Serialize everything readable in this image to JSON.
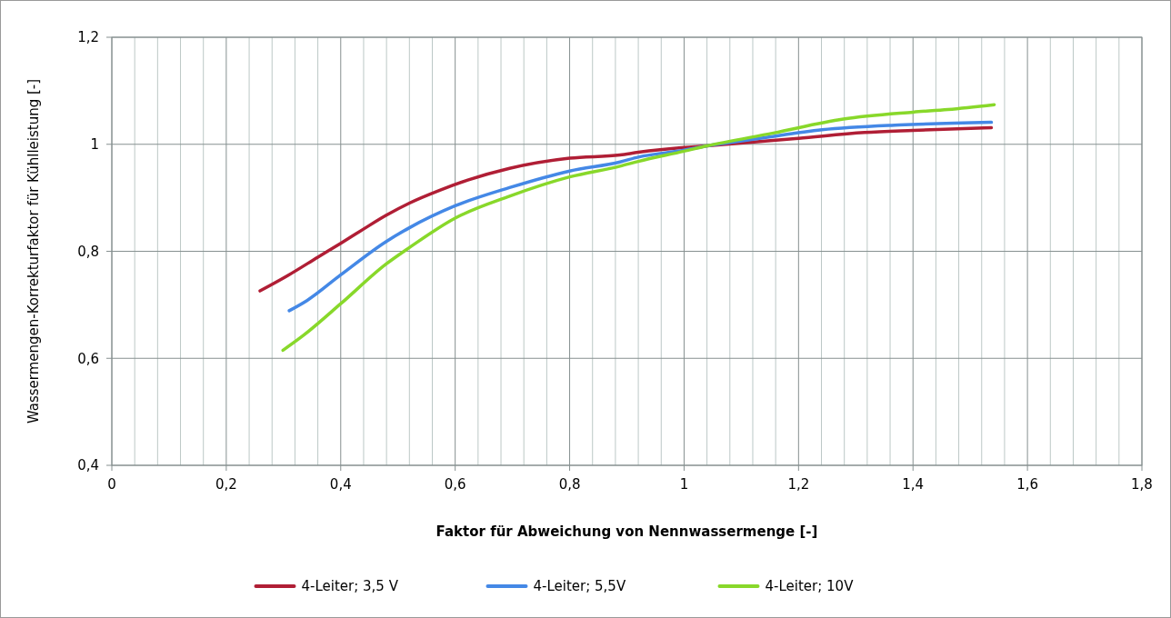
{
  "chart_data": {
    "type": "line",
    "xlabel": "Faktor für Abweichung von Nennwassermenge  [-]",
    "ylabel": "Wassermengen-Korrekturfaktor für Kühlleistung  [-]",
    "xlim": [
      0,
      1.8
    ],
    "ylim": [
      0.4,
      1.2
    ],
    "xticks": [
      0,
      {
        "value": 0.04,
        "label": null
      },
      {
        "value": 0.08,
        "label": null
      },
      {
        "value": 0.12,
        "label": null
      },
      {
        "value": 0.16,
        "label": null
      },
      {
        "value": 0.2,
        "label": "0,2"
      },
      {
        "value": 0.24,
        "label": null
      },
      {
        "value": 0.28,
        "label": null
      },
      {
        "value": 0.32,
        "label": null
      },
      {
        "value": 0.36,
        "label": null
      },
      {
        "value": 0.4,
        "label": "0,4"
      },
      {
        "value": 0.44,
        "label": null
      },
      {
        "value": 0.48,
        "label": null
      },
      {
        "value": 0.52,
        "label": null
      },
      {
        "value": 0.56,
        "label": null
      },
      {
        "value": 0.6,
        "label": "0,6"
      },
      {
        "value": 0.64,
        "label": null
      },
      {
        "value": 0.68,
        "label": null
      },
      {
        "value": 0.72,
        "label": null
      },
      {
        "value": 0.76,
        "label": null
      },
      {
        "value": 0.8,
        "label": "0,8"
      },
      {
        "value": 0.84,
        "label": null
      },
      {
        "value": 0.88,
        "label": null
      },
      {
        "value": 0.92,
        "label": null
      },
      {
        "value": 0.96,
        "label": null
      },
      1,
      {
        "value": 1.04,
        "label": null
      },
      {
        "value": 1.08,
        "label": null
      },
      {
        "value": 1.12,
        "label": null
      },
      {
        "value": 1.16,
        "label": null
      },
      {
        "value": 1.2,
        "label": "1,2"
      },
      {
        "value": 1.24,
        "label": null
      },
      {
        "value": 1.28,
        "label": null
      },
      {
        "value": 1.32,
        "label": null
      },
      {
        "value": 1.36,
        "label": null
      },
      {
        "value": 1.4,
        "label": "1,4"
      },
      {
        "value": 1.44,
        "label": null
      },
      {
        "value": 1.48,
        "label": null
      },
      {
        "value": 1.52,
        "label": null
      },
      {
        "value": 1.56,
        "label": null
      },
      {
        "value": 1.6,
        "label": "1,6"
      },
      {
        "value": 1.64,
        "label": null
      },
      {
        "value": 1.68,
        "label": null
      },
      {
        "value": 1.72,
        "label": null
      },
      {
        "value": 1.76,
        "label": null
      },
      {
        "value": 1.8,
        "label": "1,8"
      }
    ],
    "yticks": [
      {
        "value": 0.4,
        "label": "0,4"
      },
      {
        "value": 0.6,
        "label": "0,6"
      },
      {
        "value": 0.8,
        "label": "0,8"
      },
      1,
      {
        "value": 1.2,
        "label": "1,2"
      }
    ],
    "grid": true,
    "legend": "bottom",
    "marker": "none",
    "line_style": "solid",
    "series": [
      {
        "name": "4-Leiter; 3,5 V",
        "color": "#b01e35",
        "x": [
          0.259,
          0.308,
          0.36,
          0.4,
          0.439,
          0.479,
          0.52,
          0.573,
          0.622,
          0.695,
          0.8,
          0.888,
          0.92,
          1.0,
          1.04,
          1.2,
          1.315,
          1.4,
          1.537
        ],
        "values": [
          0.726,
          0.755,
          0.789,
          0.815,
          0.841,
          0.867,
          0.89,
          0.914,
          0.933,
          0.955,
          0.974,
          0.98,
          0.985,
          0.994,
          0.997,
          1.011,
          1.022,
          1.026,
          1.031
        ]
      },
      {
        "name": "4-Leiter; 5,5V",
        "color": "#4488e6",
        "x": [
          0.31,
          0.341,
          0.4,
          0.479,
          0.52,
          0.6,
          0.695,
          0.8,
          0.888,
          0.92,
          1.0,
          1.04,
          1.132,
          1.241,
          1.376,
          1.537
        ],
        "values": [
          0.689,
          0.708,
          0.756,
          0.818,
          0.844,
          0.885,
          0.919,
          0.95,
          0.967,
          0.976,
          0.989,
          0.997,
          1.011,
          1.027,
          1.036,
          1.041
        ]
      },
      {
        "name": "4-Leiter; 10V",
        "color": "#88d82a",
        "x": [
          0.299,
          0.335,
          0.4,
          0.479,
          0.52,
          0.6,
          0.695,
          0.8,
          0.888,
          0.92,
          1.0,
          1.04,
          1.156,
          1.278,
          1.4,
          1.461,
          1.542
        ],
        "values": [
          0.615,
          0.643,
          0.702,
          0.776,
          0.807,
          0.862,
          0.903,
          0.939,
          0.959,
          0.968,
          0.987,
          0.997,
          1.021,
          1.047,
          1.06,
          1.065,
          1.074
        ]
      }
    ]
  }
}
